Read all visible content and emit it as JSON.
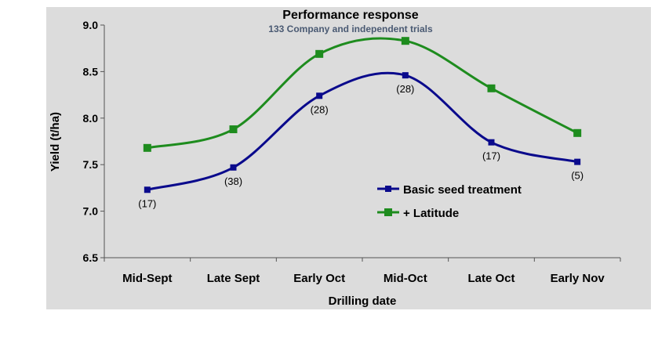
{
  "chart_data": {
    "type": "line",
    "title": "Performance response",
    "subtitle": "133 Company and independent trials",
    "xlabel": "Drilling date",
    "ylabel": "Yield (t/ha)",
    "ylim": [
      6.5,
      9.0
    ],
    "yticks": [
      "6.5",
      "7.0",
      "7.5",
      "8.0",
      "8.5",
      "9.0"
    ],
    "categories": [
      "Mid-Sept",
      "Late Sept",
      "Early Oct",
      "Mid-Oct",
      "Late Oct",
      "Early Nov"
    ],
    "series": [
      {
        "name": "Basic seed treatment",
        "color": "#0a0a8c",
        "marker": "square",
        "values": [
          7.23,
          7.47,
          8.24,
          8.46,
          7.74,
          7.53
        ],
        "labels": [
          "(17)",
          "(38)",
          "(28)",
          "(28)",
          "(17)",
          "(5)"
        ]
      },
      {
        "name": "+ Latitude",
        "color": "#1e8c1e",
        "marker": "square",
        "values": [
          7.68,
          7.88,
          8.69,
          8.83,
          8.32,
          7.84
        ]
      }
    ],
    "legend_position": "lower-right inside plot",
    "grid": false,
    "background": "#dcdcdc"
  }
}
